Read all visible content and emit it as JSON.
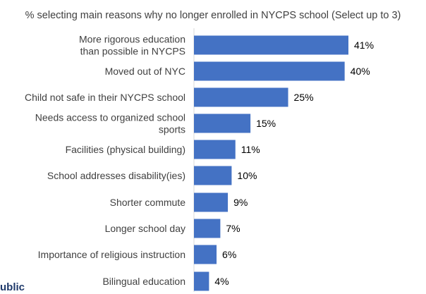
{
  "chart_data": {
    "type": "bar",
    "orientation": "horizontal",
    "title": "% selecting main reasons why no longer enrolled in NYCPS school (Select up to 3)",
    "categories": [
      [
        "More rigorous education",
        "than possible in NYCPS"
      ],
      [
        "Moved out of NYC"
      ],
      [
        "Child not safe in their NYCPS school"
      ],
      [
        "Needs access to organized school",
        "sports"
      ],
      [
        "Facilities (physical building)"
      ],
      [
        "School addresses disability(ies)"
      ],
      [
        "Shorter commute"
      ],
      [
        "Longer school day"
      ],
      [
        "Importance of religious instruction"
      ],
      [
        "Bilingual education"
      ]
    ],
    "values": [
      41,
      40,
      25,
      15,
      11,
      10,
      9,
      7,
      6,
      4
    ],
    "value_labels": [
      "41%",
      "40%",
      "25%",
      "15%",
      "11%",
      "10%",
      "9%",
      "7%",
      "6%",
      "4%"
    ],
    "xlim": [
      0,
      50
    ],
    "grid": false,
    "legend": "none",
    "bar_color": "#4472c4"
  },
  "footer": {
    "brand_fragment": "ublic"
  }
}
